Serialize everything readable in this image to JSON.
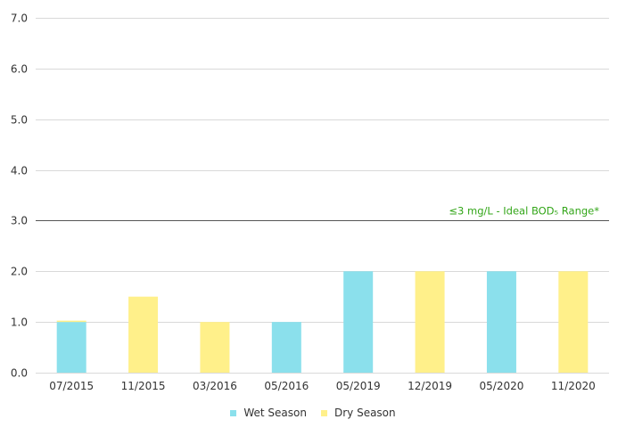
{
  "chart_data": {
    "type": "bar",
    "stacked": true,
    "categories": [
      "07/2015",
      "11/2015",
      "03/2016",
      "05/2016",
      "05/2019",
      "12/2019",
      "05/2020",
      "11/2020"
    ],
    "series": [
      {
        "name": "Wet Season",
        "color": "#8be0ec",
        "values": [
          1.0,
          0,
          0,
          1.0,
          2.0,
          0,
          2.0,
          0
        ]
      },
      {
        "name": "Dry Season",
        "color": "#fff08a",
        "values": [
          0.0,
          1.5,
          1.0,
          0,
          0,
          2.0,
          0,
          2.0
        ]
      }
    ],
    "ylim": [
      0,
      7
    ],
    "yticks": [
      "0.0",
      "1.0",
      "2.0",
      "3.0",
      "4.0",
      "5.0",
      "6.0",
      "7.0"
    ],
    "grid": true,
    "legend_position": "bottom",
    "threshold": {
      "value": 3.0,
      "label": "≤3 mg/L - Ideal BOD₅ Range*",
      "color": "#33a619"
    }
  }
}
